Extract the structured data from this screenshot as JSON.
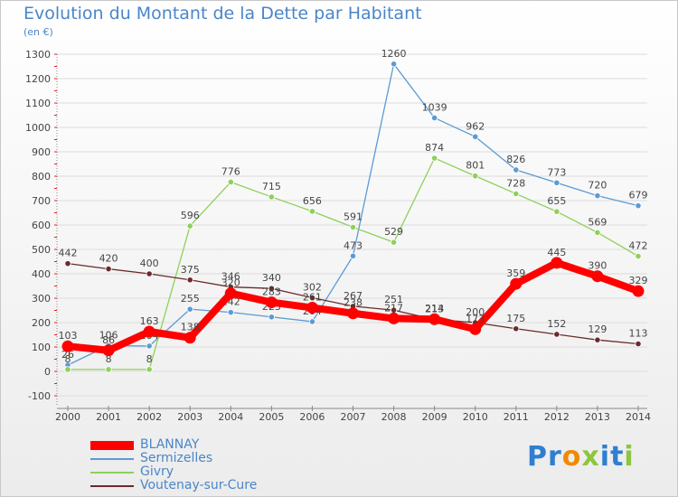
{
  "header": {
    "title": "Evolution du Montant de la Dette par Habitant",
    "subtitle": "(en €)"
  },
  "chart_data": {
    "type": "line",
    "title": "Evolution du Montant de la Dette par Habitant",
    "subtitle": "(en €)",
    "xlabel": "",
    "ylabel": "",
    "ylim": [
      -100,
      1300
    ],
    "y_ticks": [
      -100,
      0,
      100,
      200,
      300,
      400,
      500,
      600,
      700,
      800,
      900,
      1000,
      1100,
      1200,
      1300
    ],
    "y_tick_labels": [
      "-100",
      "0",
      "100",
      "200",
      "300",
      "400",
      "500",
      "600",
      "700",
      "800",
      "900",
      "1000",
      "1100",
      "1200",
      "1300"
    ],
    "categories": [
      "2000",
      "2001",
      "2002",
      "2003",
      "2004",
      "2005",
      "2006",
      "2007",
      "2008",
      "2009",
      "2010",
      "2011",
      "2012",
      "2013",
      "2014"
    ],
    "grid": "horizontal",
    "legend_position": "bottom-left",
    "series": [
      {
        "name": "Sermizelles",
        "color": "#5b9bd5",
        "values": [
          26,
          106,
          104,
          255,
          242,
          223,
          204,
          473,
          1260,
          1039,
          962,
          826,
          773,
          720,
          679
        ],
        "labels": [
          "26",
          "106",
          "104",
          "255",
          "242",
          "223",
          "204",
          "473",
          "1260",
          "1039",
          "962",
          "826",
          "773",
          "720",
          "679"
        ]
      },
      {
        "name": "Givry",
        "color": "#8fd05a",
        "values": [
          8,
          8,
          8,
          596,
          776,
          715,
          656,
          591,
          529,
          874,
          801,
          728,
          655,
          569,
          472
        ],
        "labels": [
          "8",
          "8",
          "8",
          "596",
          "776",
          "715",
          "656",
          "591",
          "529",
          "874",
          "801",
          "728",
          "655",
          "569",
          "472"
        ]
      },
      {
        "name": "Voutenay-sur-Cure",
        "color": "#6b2a2a",
        "values": [
          442,
          420,
          400,
          375,
          346,
          340,
          302,
          267,
          251,
          213,
          200,
          175,
          152,
          129,
          113
        ],
        "labels": [
          "442",
          "420",
          "400",
          "375",
          "346",
          "340",
          "302",
          "267",
          "251",
          "213",
          "200",
          "175",
          "152",
          "129",
          "113"
        ]
      },
      {
        "name": "BLANNAY",
        "color": "#ff0000",
        "values": [
          103,
          86,
          163,
          138,
          320,
          283,
          261,
          238,
          217,
          214,
          173,
          359,
          445,
          390,
          329
        ],
        "labels": [
          "103",
          "86",
          "163",
          "138",
          "320",
          "283",
          "261",
          "238",
          "217",
          "214",
          "173",
          "359",
          "445",
          "390",
          "329"
        ]
      }
    ]
  },
  "legend": {
    "items": [
      {
        "label": "BLANNAY",
        "color": "#ff0000"
      },
      {
        "label": "Sermizelles",
        "color": "#5b9bd5"
      },
      {
        "label": "Givry",
        "color": "#8fd05a"
      },
      {
        "label": "Voutenay-sur-Cure",
        "color": "#6b2a2a"
      }
    ]
  },
  "logo": {
    "letters": [
      "P",
      "r",
      "o",
      "x",
      "i",
      "t",
      "i"
    ],
    "colors": [
      "#2f7fd0",
      "#2f7fd0",
      "#f08a00",
      "#8cc63e",
      "#2f7fd0",
      "#2f7fd0",
      "#8cc63e"
    ]
  }
}
